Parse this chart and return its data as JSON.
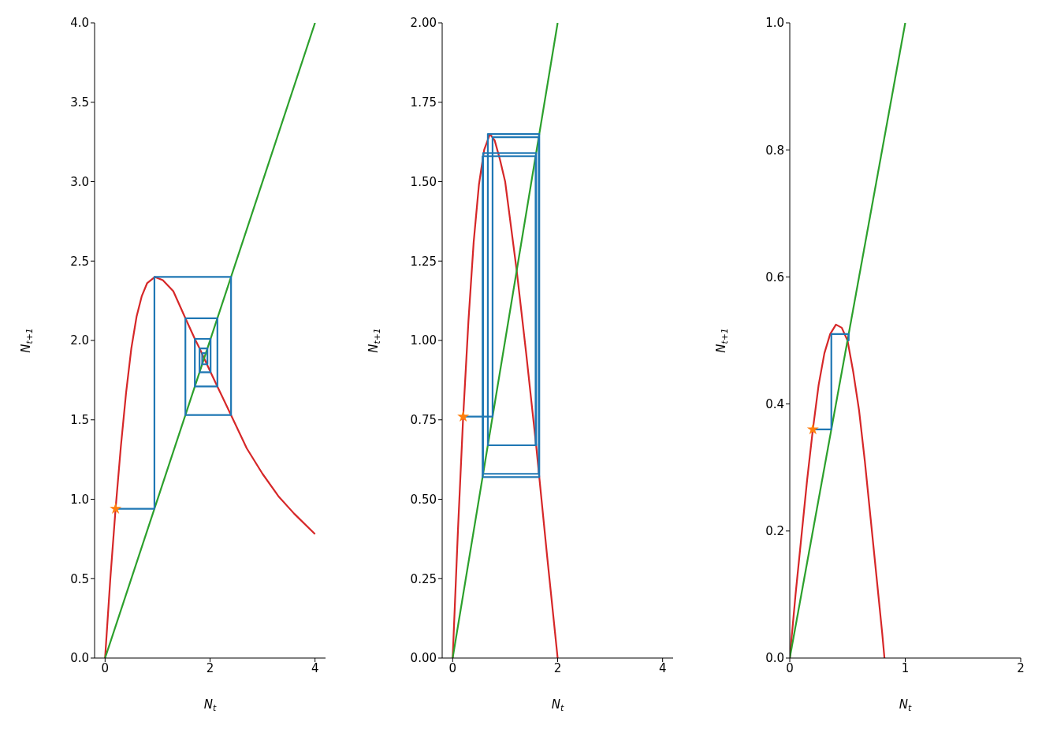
{
  "chart_data": [
    {
      "type": "line",
      "xlabel": "N$_{t}$",
      "ylabel": "N$_{t+1}$",
      "xlim": [
        -0.2,
        4.2
      ],
      "ylim": [
        0,
        4
      ],
      "xticks": [
        0,
        2,
        4
      ],
      "yticks": [
        {
          "value": 0,
          "label": "0.0"
        },
        {
          "value": 0.5,
          "label": "0.5"
        },
        {
          "value": 1,
          "label": "1.0"
        },
        {
          "value": 1.5,
          "label": "1.5"
        },
        {
          "value": 2,
          "label": "2.0"
        },
        {
          "value": 2.5,
          "label": "2.5"
        },
        {
          "value": 3,
          "label": "3.0"
        },
        {
          "value": 3.5,
          "label": "3.5"
        },
        {
          "value": 4,
          "label": "4.0"
        }
      ],
      "series": [
        {
          "color": "#d62728",
          "x": [
            0,
            0.1,
            0.2,
            0.3,
            0.4,
            0.5,
            0.6,
            0.7,
            0.8,
            0.95,
            1.1,
            1.3,
            1.53,
            1.71,
            1.8,
            2.01,
            2.14,
            2.4,
            2.7,
            3.0,
            3.3,
            3.6,
            4.0
          ],
          "values": [
            0,
            0.5,
            0.94,
            1.33,
            1.67,
            1.95,
            2.15,
            2.28,
            2.36,
            2.4,
            2.38,
            2.31,
            2.14,
            2.01,
            1.95,
            1.8,
            1.71,
            1.53,
            1.32,
            1.16,
            1.02,
            0.91,
            0.78
          ]
        },
        {
          "color": "#2ca02c",
          "x": [
            0,
            4
          ],
          "values": [
            0,
            4
          ]
        },
        {
          "color": "#1f77b4",
          "x": [
            0.2,
            0.94,
            0.94,
            2.4,
            2.4,
            1.53,
            1.53,
            2.14,
            2.14,
            1.71,
            1.71,
            2.01,
            2.01,
            1.8,
            1.8,
            1.95,
            1.95,
            1.85,
            1.85,
            1.92
          ],
          "values": [
            0.94,
            0.94,
            2.4,
            2.4,
            1.53,
            1.53,
            2.14,
            2.14,
            1.71,
            1.71,
            2.01,
            2.01,
            1.8,
            1.8,
            1.95,
            1.95,
            1.85,
            1.85,
            1.92,
            1.92
          ]
        },
        {
          "type": "scatter",
          "marker": "star",
          "color": "#ff7f0e",
          "x": [
            0.2
          ],
          "values": [
            0.94
          ]
        }
      ]
    },
    {
      "type": "line",
      "xlabel": "N$_{t}$",
      "ylabel": "N$_{t+1}$",
      "xlim": [
        -0.2,
        4.2
      ],
      "ylim": [
        0,
        2
      ],
      "xticks": [
        0,
        2,
        4
      ],
      "yticks": [
        {
          "value": 0,
          "label": "0.00"
        },
        {
          "value": 0.25,
          "label": "0.25"
        },
        {
          "value": 0.5,
          "label": "0.50"
        },
        {
          "value": 0.75,
          "label": "0.75"
        },
        {
          "value": 1,
          "label": "1.00"
        },
        {
          "value": 1.25,
          "label": "1.25"
        },
        {
          "value": 1.5,
          "label": "1.50"
        },
        {
          "value": 1.75,
          "label": "1.75"
        },
        {
          "value": 2,
          "label": "2.00"
        }
      ],
      "series": [
        {
          "color": "#d62728",
          "x": [
            0,
            0.1,
            0.2,
            0.3,
            0.4,
            0.5,
            0.6,
            0.71,
            0.8,
            0.9,
            1.0,
            1.22,
            1.4,
            1.59,
            1.65,
            1.8,
            2.0
          ],
          "values": [
            0,
            0.4,
            0.76,
            1.06,
            1.31,
            1.49,
            1.6,
            1.65,
            1.63,
            1.57,
            1.5,
            1.22,
            0.96,
            0.67,
            0.57,
            0.32,
            0
          ]
        },
        {
          "color": "#2ca02c",
          "x": [
            0,
            2
          ],
          "values": [
            0,
            2
          ]
        },
        {
          "color": "#1f77b4",
          "x": [
            0.2,
            0.76,
            0.76,
            1.64,
            1.64,
            0.58,
            0.58,
            1.59,
            1.59,
            0.67,
            0.67,
            1.65,
            1.65,
            0.57,
            0.57,
            1.58,
            1.58,
            0.67,
            0.67,
            1.65,
            1.65
          ],
          "values": [
            0.76,
            0.76,
            1.64,
            1.64,
            0.58,
            0.58,
            1.59,
            1.59,
            0.67,
            0.67,
            1.65,
            1.65,
            0.57,
            0.57,
            1.58,
            1.58,
            0.67,
            0.67,
            1.65,
            1.65,
            0.57
          ]
        },
        {
          "type": "scatter",
          "marker": "star",
          "color": "#ff7f0e",
          "x": [
            0.2
          ],
          "values": [
            0.76
          ]
        }
      ]
    },
    {
      "type": "line",
      "xlabel": "N$_{t}$",
      "ylabel": "N$_{t+1}$",
      "xlim": [
        0,
        2
      ],
      "ylim": [
        0,
        1
      ],
      "xticks": [
        0,
        1,
        2
      ],
      "yticks": [
        {
          "value": 0,
          "label": "0.0"
        },
        {
          "value": 0.2,
          "label": "0.2"
        },
        {
          "value": 0.4,
          "label": "0.4"
        },
        {
          "value": 0.6,
          "label": "0.6"
        },
        {
          "value": 0.8,
          "label": "0.8"
        },
        {
          "value": 1,
          "label": "1.0"
        }
      ],
      "series": [
        {
          "color": "#d62728",
          "x": [
            0,
            0.05,
            0.1,
            0.15,
            0.2,
            0.25,
            0.3,
            0.35,
            0.4,
            0.45,
            0.5,
            0.55,
            0.6,
            0.65,
            0.7,
            0.75,
            0.8,
            0.82
          ],
          "values": [
            0,
            0.1,
            0.19,
            0.28,
            0.36,
            0.43,
            0.48,
            0.51,
            0.525,
            0.52,
            0.5,
            0.45,
            0.39,
            0.31,
            0.22,
            0.13,
            0.04,
            0
          ]
        },
        {
          "color": "#2ca02c",
          "x": [
            0,
            1
          ],
          "values": [
            0,
            1
          ]
        },
        {
          "color": "#1f77b4",
          "x": [
            0.2,
            0.36,
            0.36,
            0.51,
            0.51,
            0.5
          ],
          "values": [
            0.36,
            0.36,
            0.51,
            0.51,
            0.5,
            0.5
          ]
        },
        {
          "type": "scatter",
          "marker": "star",
          "color": "#ff7f0e",
          "x": [
            0.2
          ],
          "values": [
            0.36
          ]
        }
      ]
    }
  ]
}
